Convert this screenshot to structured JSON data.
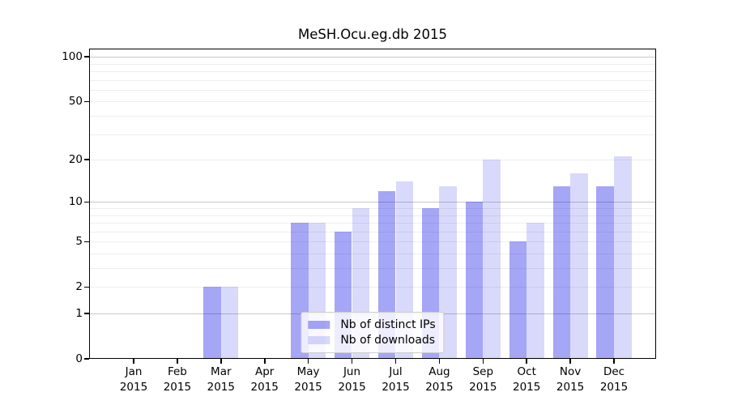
{
  "chart_data": {
    "type": "bar",
    "title": "MeSH.Ocu.eg.db 2015",
    "categories": [
      "Jan 2015",
      "Feb 2015",
      "Mar 2015",
      "Apr 2015",
      "May 2015",
      "Jun 2015",
      "Jul 2015",
      "Aug 2015",
      "Sep 2015",
      "Oct 2015",
      "Nov 2015",
      "Dec 2015"
    ],
    "month_labels": [
      "Jan",
      "Feb",
      "Mar",
      "Apr",
      "May",
      "Jun",
      "Jul",
      "Aug",
      "Sep",
      "Oct",
      "Nov",
      "Dec"
    ],
    "year_label": "2015",
    "series": [
      {
        "name": "Nb of distinct IPs",
        "values": [
          0,
          0,
          2,
          0,
          7,
          6,
          12,
          9,
          10,
          5,
          13,
          13
        ]
      },
      {
        "name": "Nb of downloads",
        "values": [
          0,
          0,
          2,
          0,
          7,
          9,
          14,
          13,
          20,
          7,
          16,
          21
        ]
      }
    ],
    "yscale": "log1p",
    "ylim": [
      0,
      113
    ],
    "yticks": [
      0,
      1,
      2,
      5,
      10,
      20,
      50,
      100
    ],
    "major_gridlines": [
      1,
      10,
      100
    ],
    "minor_gridlines": [
      2,
      3,
      4,
      5,
      6,
      7,
      8,
      9,
      20,
      30,
      40,
      50,
      60,
      70,
      80,
      90
    ],
    "grid": true,
    "legend_position": "lower center"
  },
  "legend": {
    "items": [
      {
        "label": "Nb of distinct IPs"
      },
      {
        "label": "Nb of downloads"
      }
    ]
  },
  "colors": {
    "bar_distinct_ips": "rgba(0,0,230,0.35)",
    "bar_downloads": "rgba(0,0,230,0.15)",
    "gridline_major": "#c8c8c8",
    "gridline_minor": "#eeeeee",
    "axis": "#000000",
    "background": "#ffffff",
    "text": "#000000"
  }
}
